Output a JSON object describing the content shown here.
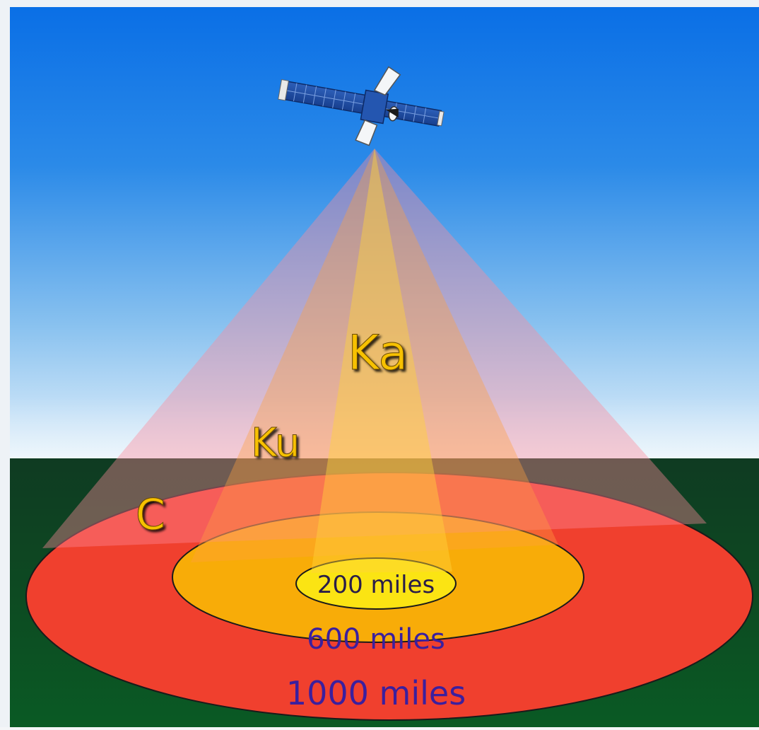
{
  "bands": {
    "c": "C",
    "ku": "Ku",
    "ka": "Ka"
  },
  "coverage": {
    "inner": "200 miles",
    "middle": "600 miles",
    "outer": "1000 miles"
  },
  "colors": {
    "sky_top": "#0a6fe6",
    "sky_horizon": "#e6f2fb",
    "ground_top": "#0f3b22",
    "ground_bottom": "#0a5a24",
    "outer_footprint": "#f0402e",
    "middle_footprint": "#f8ac08",
    "inner_footprint": "#fbe413",
    "band_label": "#f7c100",
    "distance_label": "#3b1f9e",
    "inner_label": "#2a1d4a"
  },
  "icons": {
    "satellite": "satellite-icon"
  }
}
